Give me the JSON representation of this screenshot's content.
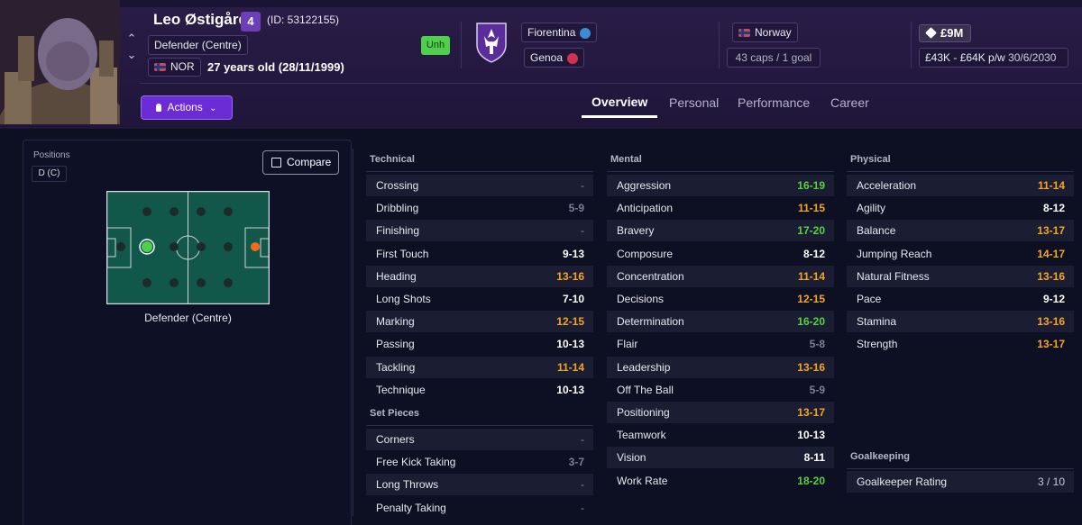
{
  "player": {
    "name": "Leo Østigård",
    "shirt_number": "4",
    "id_text": "(ID: 53122155)",
    "position": "Defender (Centre)",
    "nationality_code": "NOR",
    "age_text": "27 years old (28/11/1999)",
    "status": "Unh"
  },
  "clubs": {
    "current": "Fiorentina",
    "loan": "Genoa"
  },
  "international": {
    "country": "Norway",
    "caps_text": "43 caps / 1 goal"
  },
  "contract": {
    "value": "£9M",
    "wage_text": "£43K - £64K p/w",
    "expiry": "30/6/2030"
  },
  "actions": {
    "label": "Actions"
  },
  "tabs": [
    {
      "label": "Overview",
      "active": true
    },
    {
      "label": "Personal",
      "active": false
    },
    {
      "label": "Performance",
      "active": false
    },
    {
      "label": "Career",
      "active": false
    }
  ],
  "positions_panel": {
    "label": "Positions",
    "badge": "D (C)",
    "compare_label": "Compare",
    "pitch_caption": "Defender (Centre)"
  },
  "attributes": {
    "technical": {
      "title": "Technical",
      "items": [
        {
          "name": "Crossing",
          "value": "-",
          "tone": "dash"
        },
        {
          "name": "Dribbling",
          "value": "5-9",
          "tone": "grey"
        },
        {
          "name": "Finishing",
          "value": "-",
          "tone": "dash"
        },
        {
          "name": "First Touch",
          "value": "9-13",
          "tone": "plain"
        },
        {
          "name": "Heading",
          "value": "13-16",
          "tone": "orange"
        },
        {
          "name": "Long Shots",
          "value": "7-10",
          "tone": "plain"
        },
        {
          "name": "Marking",
          "value": "12-15",
          "tone": "orange"
        },
        {
          "name": "Passing",
          "value": "10-13",
          "tone": "plain"
        },
        {
          "name": "Tackling",
          "value": "11-14",
          "tone": "orange"
        },
        {
          "name": "Technique",
          "value": "10-13",
          "tone": "plain"
        }
      ]
    },
    "set_pieces": {
      "title": "Set Pieces",
      "items": [
        {
          "name": "Corners",
          "value": "-",
          "tone": "dash"
        },
        {
          "name": "Free Kick Taking",
          "value": "3-7",
          "tone": "grey"
        },
        {
          "name": "Long Throws",
          "value": "-",
          "tone": "dash"
        },
        {
          "name": "Penalty Taking",
          "value": "-",
          "tone": "dash"
        }
      ]
    },
    "mental": {
      "title": "Mental",
      "items": [
        {
          "name": "Aggression",
          "value": "16-19",
          "tone": "green"
        },
        {
          "name": "Anticipation",
          "value": "11-15",
          "tone": "orange"
        },
        {
          "name": "Bravery",
          "value": "17-20",
          "tone": "green"
        },
        {
          "name": "Composure",
          "value": "8-12",
          "tone": "plain"
        },
        {
          "name": "Concentration",
          "value": "11-14",
          "tone": "orange"
        },
        {
          "name": "Decisions",
          "value": "12-15",
          "tone": "orange"
        },
        {
          "name": "Determination",
          "value": "16-20",
          "tone": "green"
        },
        {
          "name": "Flair",
          "value": "5-8",
          "tone": "grey"
        },
        {
          "name": "Leadership",
          "value": "13-16",
          "tone": "orange"
        },
        {
          "name": "Off The Ball",
          "value": "5-9",
          "tone": "grey"
        },
        {
          "name": "Positioning",
          "value": "13-17",
          "tone": "orange"
        },
        {
          "name": "Teamwork",
          "value": "10-13",
          "tone": "plain"
        },
        {
          "name": "Vision",
          "value": "8-11",
          "tone": "plain"
        },
        {
          "name": "Work Rate",
          "value": "18-20",
          "tone": "green"
        }
      ]
    },
    "physical": {
      "title": "Physical",
      "items": [
        {
          "name": "Acceleration",
          "value": "11-14",
          "tone": "orange"
        },
        {
          "name": "Agility",
          "value": "8-12",
          "tone": "plain"
        },
        {
          "name": "Balance",
          "value": "13-17",
          "tone": "orange"
        },
        {
          "name": "Jumping Reach",
          "value": "14-17",
          "tone": "orange"
        },
        {
          "name": "Natural Fitness",
          "value": "13-16",
          "tone": "orange"
        },
        {
          "name": "Pace",
          "value": "9-12",
          "tone": "plain"
        },
        {
          "name": "Stamina",
          "value": "13-16",
          "tone": "orange"
        },
        {
          "name": "Strength",
          "value": "13-17",
          "tone": "orange"
        }
      ]
    },
    "goalkeeping": {
      "title": "Goalkeeping",
      "items": [
        {
          "name": "Goalkeeper Rating",
          "value": "3 / 10",
          "tone": "muted"
        }
      ]
    }
  },
  "colors": {
    "accent_purple": "#6b2bd6",
    "value_orange": "#f5a524",
    "value_green": "#5ad143",
    "status_green": "#4ed04c"
  }
}
